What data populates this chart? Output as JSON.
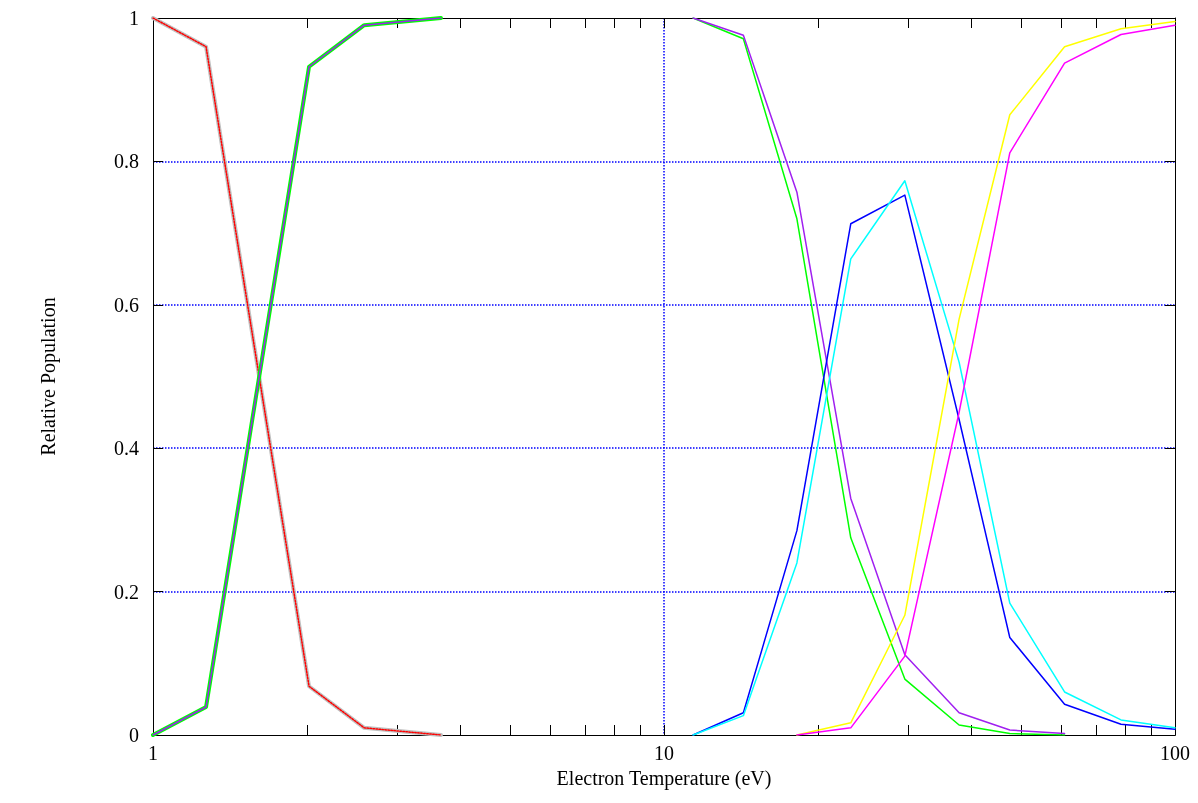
{
  "chart_data": {
    "type": "line",
    "xlabel": "Electron Temperature (eV)",
    "ylabel": "Relative Population",
    "log": "x",
    "grid": true,
    "marker": "none",
    "xlim": [
      1,
      100
    ],
    "ylim": [
      0,
      1
    ],
    "xticks": [
      1,
      {
        "value": 2,
        "label": null
      },
      {
        "value": 3,
        "label": null
      },
      {
        "value": 4,
        "label": null
      },
      {
        "value": 5,
        "label": null
      },
      {
        "value": 6,
        "label": null
      },
      {
        "value": 7,
        "label": null
      },
      {
        "value": 8,
        "label": null
      },
      {
        "value": 9,
        "label": null
      },
      10,
      {
        "value": 20,
        "label": null
      },
      {
        "value": 30,
        "label": null
      },
      {
        "value": 40,
        "label": null
      },
      {
        "value": 50,
        "label": null
      },
      {
        "value": 60,
        "label": null
      },
      {
        "value": 70,
        "label": null
      },
      {
        "value": 80,
        "label": null
      },
      {
        "value": 90,
        "label": null
      },
      100
    ],
    "yticks": [
      0,
      0.2,
      0.4,
      0.6,
      0.8,
      1
    ],
    "series": [
      {
        "color": "#c0c0c0",
        "line_style": "solid",
        "x": [
          1,
          1.27,
          2.02,
          2.59,
          3.66
        ],
        "values": [
          1,
          0.96,
          0.068,
          0.01,
          0
        ]
      },
      {
        "color": "#ff0000",
        "line_style": "dotted",
        "x": [
          1,
          1.27,
          2.02,
          2.59,
          3.66
        ],
        "values": [
          1,
          0.96,
          0.068,
          0.01,
          0
        ]
      },
      {
        "color": "#00ff00",
        "line_style": "solid",
        "x": [
          1,
          1.27,
          2.02,
          2.59,
          3.66
        ],
        "values": [
          0,
          0.039,
          0.932,
          0.99,
          1
        ]
      },
      {
        "color": "#a020f0",
        "line_style": "solid",
        "x": [
          1,
          1.27,
          2.02,
          2.59,
          3.66
        ],
        "values": [
          0,
          0.039,
          0.932,
          0.99,
          1
        ]
      },
      {
        "color": "#00ff00",
        "line_style": "solid",
        "x": [
          11.4,
          14.3,
          18.2,
          23.2,
          29.6,
          37.8,
          47.5,
          60.8
        ],
        "values": [
          1,
          0.971,
          0.72,
          0.275,
          0.078,
          0.014,
          0.002,
          0
        ]
      },
      {
        "color": "#a020f0",
        "line_style": "solid",
        "x": [
          11.4,
          14.3,
          18.2,
          23.2,
          29.6,
          37.8,
          47.5,
          60.8
        ],
        "values": [
          1,
          0.976,
          0.757,
          0.33,
          0.112,
          0.031,
          0.007,
          0.002
        ]
      },
      {
        "color": "#0000ff",
        "line_style": "solid",
        "x": [
          11.4,
          14.3,
          18.2,
          23.2,
          29.6,
          37.8,
          47.5,
          60.8,
          78.4,
          100
        ],
        "values": [
          0,
          0.031,
          0.285,
          0.713,
          0.753,
          0.44,
          0.136,
          0.043,
          0.015,
          0.008
        ]
      },
      {
        "color": "#00ffff",
        "line_style": "solid",
        "x": [
          11.4,
          14.3,
          18.2,
          23.2,
          29.6,
          37.8,
          47.5,
          60.8,
          78.4,
          100
        ],
        "values": [
          0,
          0.027,
          0.24,
          0.664,
          0.773,
          0.52,
          0.184,
          0.06,
          0.021,
          0.01
        ]
      },
      {
        "color": "#ffff00",
        "line_style": "solid",
        "x": [
          18.2,
          23.2,
          29.6,
          37.8,
          47.5,
          60.8,
          78.4,
          100
        ],
        "values": [
          0,
          0.017,
          0.167,
          0.58,
          0.865,
          0.96,
          0.985,
          0.995
        ]
      },
      {
        "color": "#ff00ff",
        "line_style": "solid",
        "x": [
          18.2,
          23.2,
          29.6,
          37.8,
          47.5,
          60.8,
          78.4,
          100
        ],
        "values": [
          0,
          0.01,
          0.11,
          0.45,
          0.812,
          0.937,
          0.977,
          0.99
        ]
      }
    ]
  }
}
